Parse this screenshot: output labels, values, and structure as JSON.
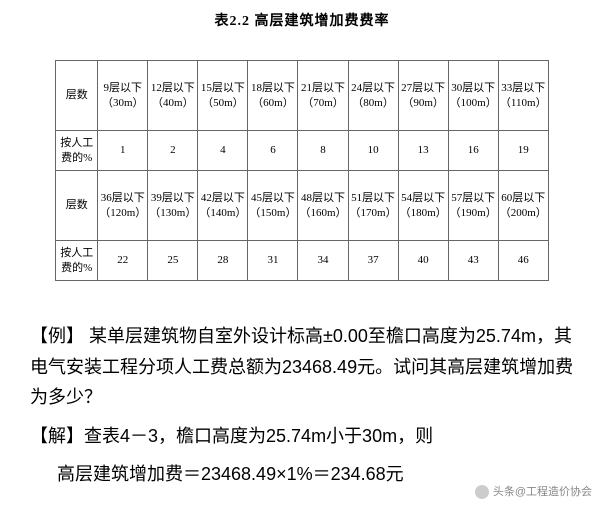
{
  "title": "表2.2 高层建筑增加费费率",
  "table": {
    "row_labels": [
      "层数",
      "按人工费的%",
      "层数",
      "按人工费的%"
    ],
    "r1": [
      "9层以下（30m）",
      "12层以下（40m）",
      "15层以下（50m）",
      "18层以下（60m）",
      "21层以下（70m）",
      "24层以下（80m）",
      "27层以下（90m）",
      "30层以下（100m）",
      "33层以下（110m）"
    ],
    "r2": [
      "1",
      "2",
      "4",
      "6",
      "8",
      "10",
      "13",
      "16",
      "19"
    ],
    "r3": [
      "36层以下（120m）",
      "39层以下（130m）",
      "42层以下（140m）",
      "45层以下（150m）",
      "48层以下（160m）",
      "51层以下（170m）",
      "54层以下（180m）",
      "57层以下（190m）",
      "60层以下（200m）"
    ],
    "r4": [
      "22",
      "25",
      "28",
      "31",
      "34",
      "37",
      "40",
      "43",
      "46"
    ]
  },
  "body": {
    "p1": "【例】 某单层建筑物自室外设计标高±0.00至檐口高度为25.74m，其电气安装工程分项人工费总额为23468.49元。试问其高层建筑增加费为多少？",
    "p2": "【解】查表4－3，檐口高度为25.74m小于30m，则",
    "p3": "高层建筑增加费＝23468.49×1%＝234.68元"
  },
  "footer": {
    "source": "头条@工程造价协会"
  }
}
